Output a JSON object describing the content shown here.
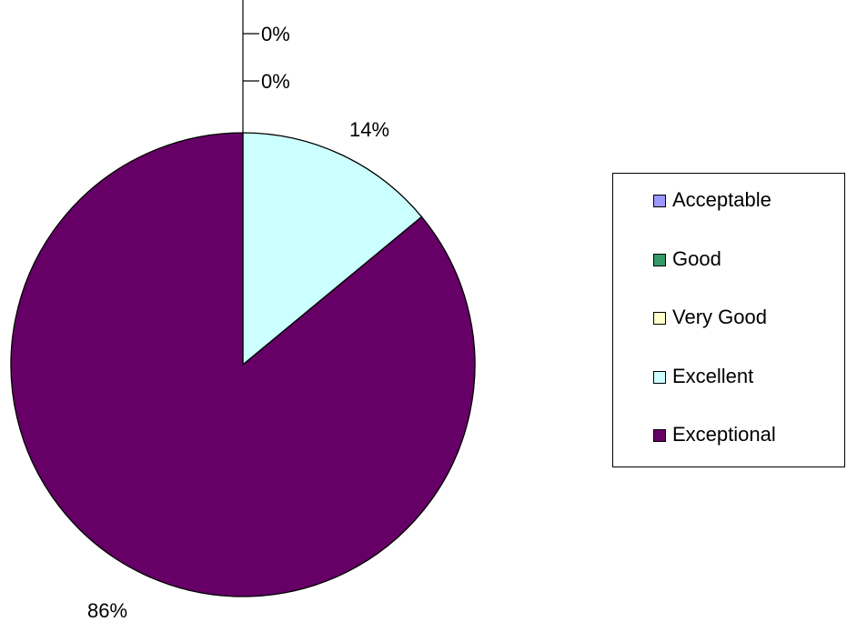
{
  "chart_data": {
    "type": "pie",
    "categories": [
      "Acceptable",
      "Good",
      "Very Good",
      "Excellent",
      "Exceptional"
    ],
    "values": [
      0,
      0,
      0,
      14,
      86
    ],
    "unit": "%",
    "data_labels": [
      "0%",
      "0%",
      "0%",
      "14%",
      "86%"
    ],
    "colors": [
      "#9999ff",
      "#339966",
      "#ffffcc",
      "#ccffff",
      "#660066"
    ],
    "title": "",
    "legend": "right",
    "start_angle": "12 o'clock",
    "direction": "clockwise"
  },
  "legend": {
    "items": [
      {
        "label": "Acceptable",
        "color": "#9999ff"
      },
      {
        "label": "Good",
        "color": "#339966"
      },
      {
        "label": "Very Good",
        "color": "#ffffcc"
      },
      {
        "label": "Excellent",
        "color": "#ccffff"
      },
      {
        "label": "Exceptional",
        "color": "#660066"
      }
    ]
  }
}
